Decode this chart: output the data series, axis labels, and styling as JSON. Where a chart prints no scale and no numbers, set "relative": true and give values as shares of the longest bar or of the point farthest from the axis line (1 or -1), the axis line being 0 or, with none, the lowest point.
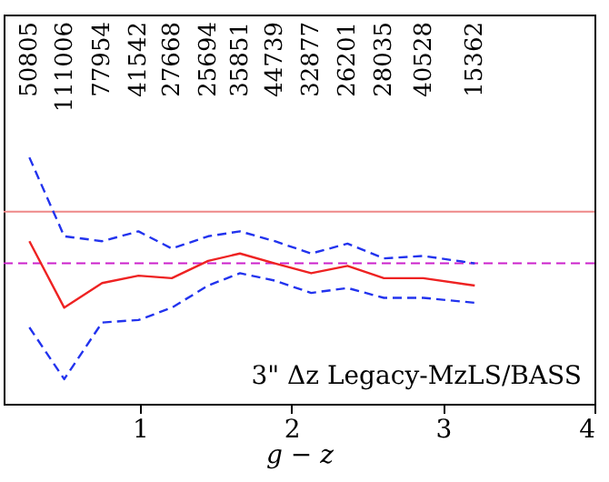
{
  "chart_data": {
    "type": "line",
    "relative": true,
    "xlabel": "g − z",
    "xlim": [
      0.1,
      4
    ],
    "xticks": [
      1,
      2,
      3,
      4
    ],
    "x": [
      0.27,
      0.5,
      0.75,
      0.99,
      1.21,
      1.45,
      1.66,
      1.89,
      2.13,
      2.37,
      2.61,
      2.87,
      3.21
    ],
    "series": [
      {
        "color": "#ee2222",
        "line_style": "solid",
        "values": [
          0.66,
          0.39,
          0.49,
          0.52,
          0.51,
          0.58,
          0.61,
          0.57,
          0.53,
          0.56,
          0.51,
          0.51,
          0.48
        ]
      },
      {
        "color": "#2233ee",
        "line_style": "dashed",
        "values": [
          1,
          0.68,
          0.66,
          0.7,
          0.63,
          0.68,
          0.7,
          0.66,
          0.61,
          0.65,
          0.59,
          0.6,
          0.57
        ]
      },
      {
        "color": "#2233ee",
        "line_style": "dashed",
        "values": [
          0.31,
          0.1,
          0.33,
          0.34,
          0.39,
          0.48,
          0.53,
          0.5,
          0.45,
          0.47,
          0.43,
          0.43,
          0.41
        ]
      }
    ],
    "ref_lines": [
      {
        "axis": "y",
        "value": 0.78,
        "color": "#ee8888",
        "line_style": "solid"
      },
      {
        "axis": "y",
        "value": 0.57,
        "color": "#cc22cc",
        "line_style": "dashed"
      }
    ],
    "annotations": [
      "50805",
      "111006",
      "77954",
      "41542",
      "27668",
      "25694",
      "35851",
      "44739",
      "32877",
      "26201",
      "28035",
      "40528",
      "15362",
      "3\" Δz Legacy-MzLS/BASS"
    ],
    "grid": false
  }
}
